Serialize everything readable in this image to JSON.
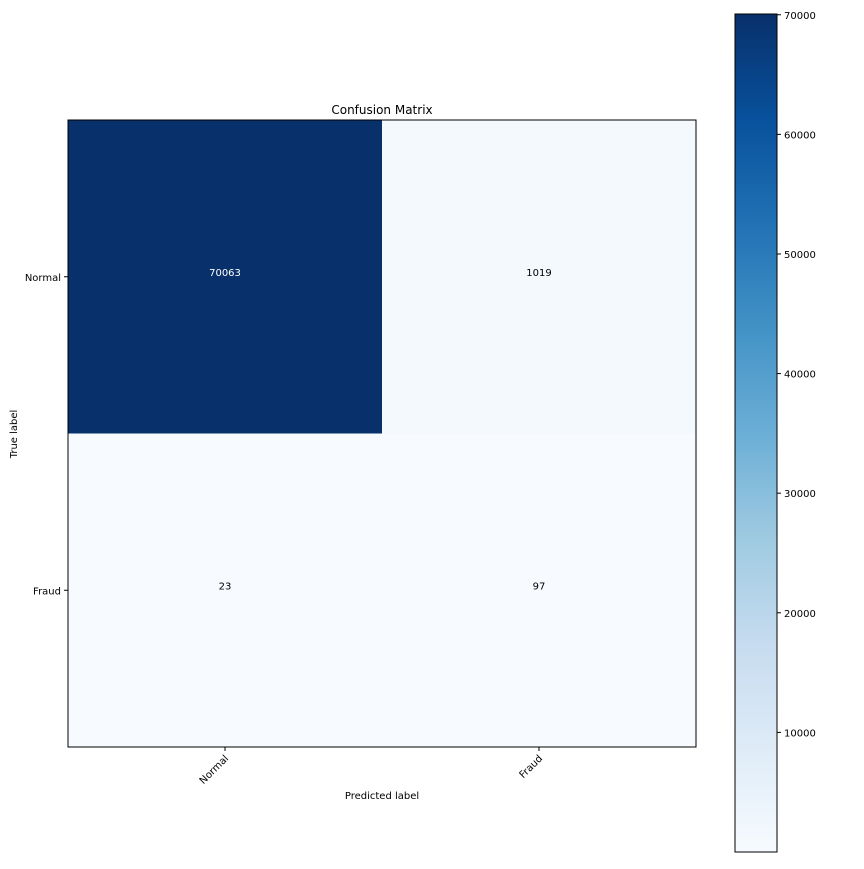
{
  "chart_data": {
    "type": "heatmap",
    "title": "Confusion Matrix",
    "xlabel": "Predicted label",
    "ylabel": "True label",
    "x_categories": [
      "Normal",
      "Fraud"
    ],
    "y_categories": [
      "Normal",
      "Fraud"
    ],
    "values": [
      [
        70063,
        1019
      ],
      [
        23,
        97
      ]
    ],
    "colormap": "Blues",
    "colorbar": {
      "min": 0,
      "max": 70063,
      "ticks": [
        10000,
        20000,
        30000,
        40000,
        50000,
        60000,
        70000
      ]
    },
    "text_color_dark": "#ffffff",
    "text_color_light": "#000000",
    "grid": false
  }
}
